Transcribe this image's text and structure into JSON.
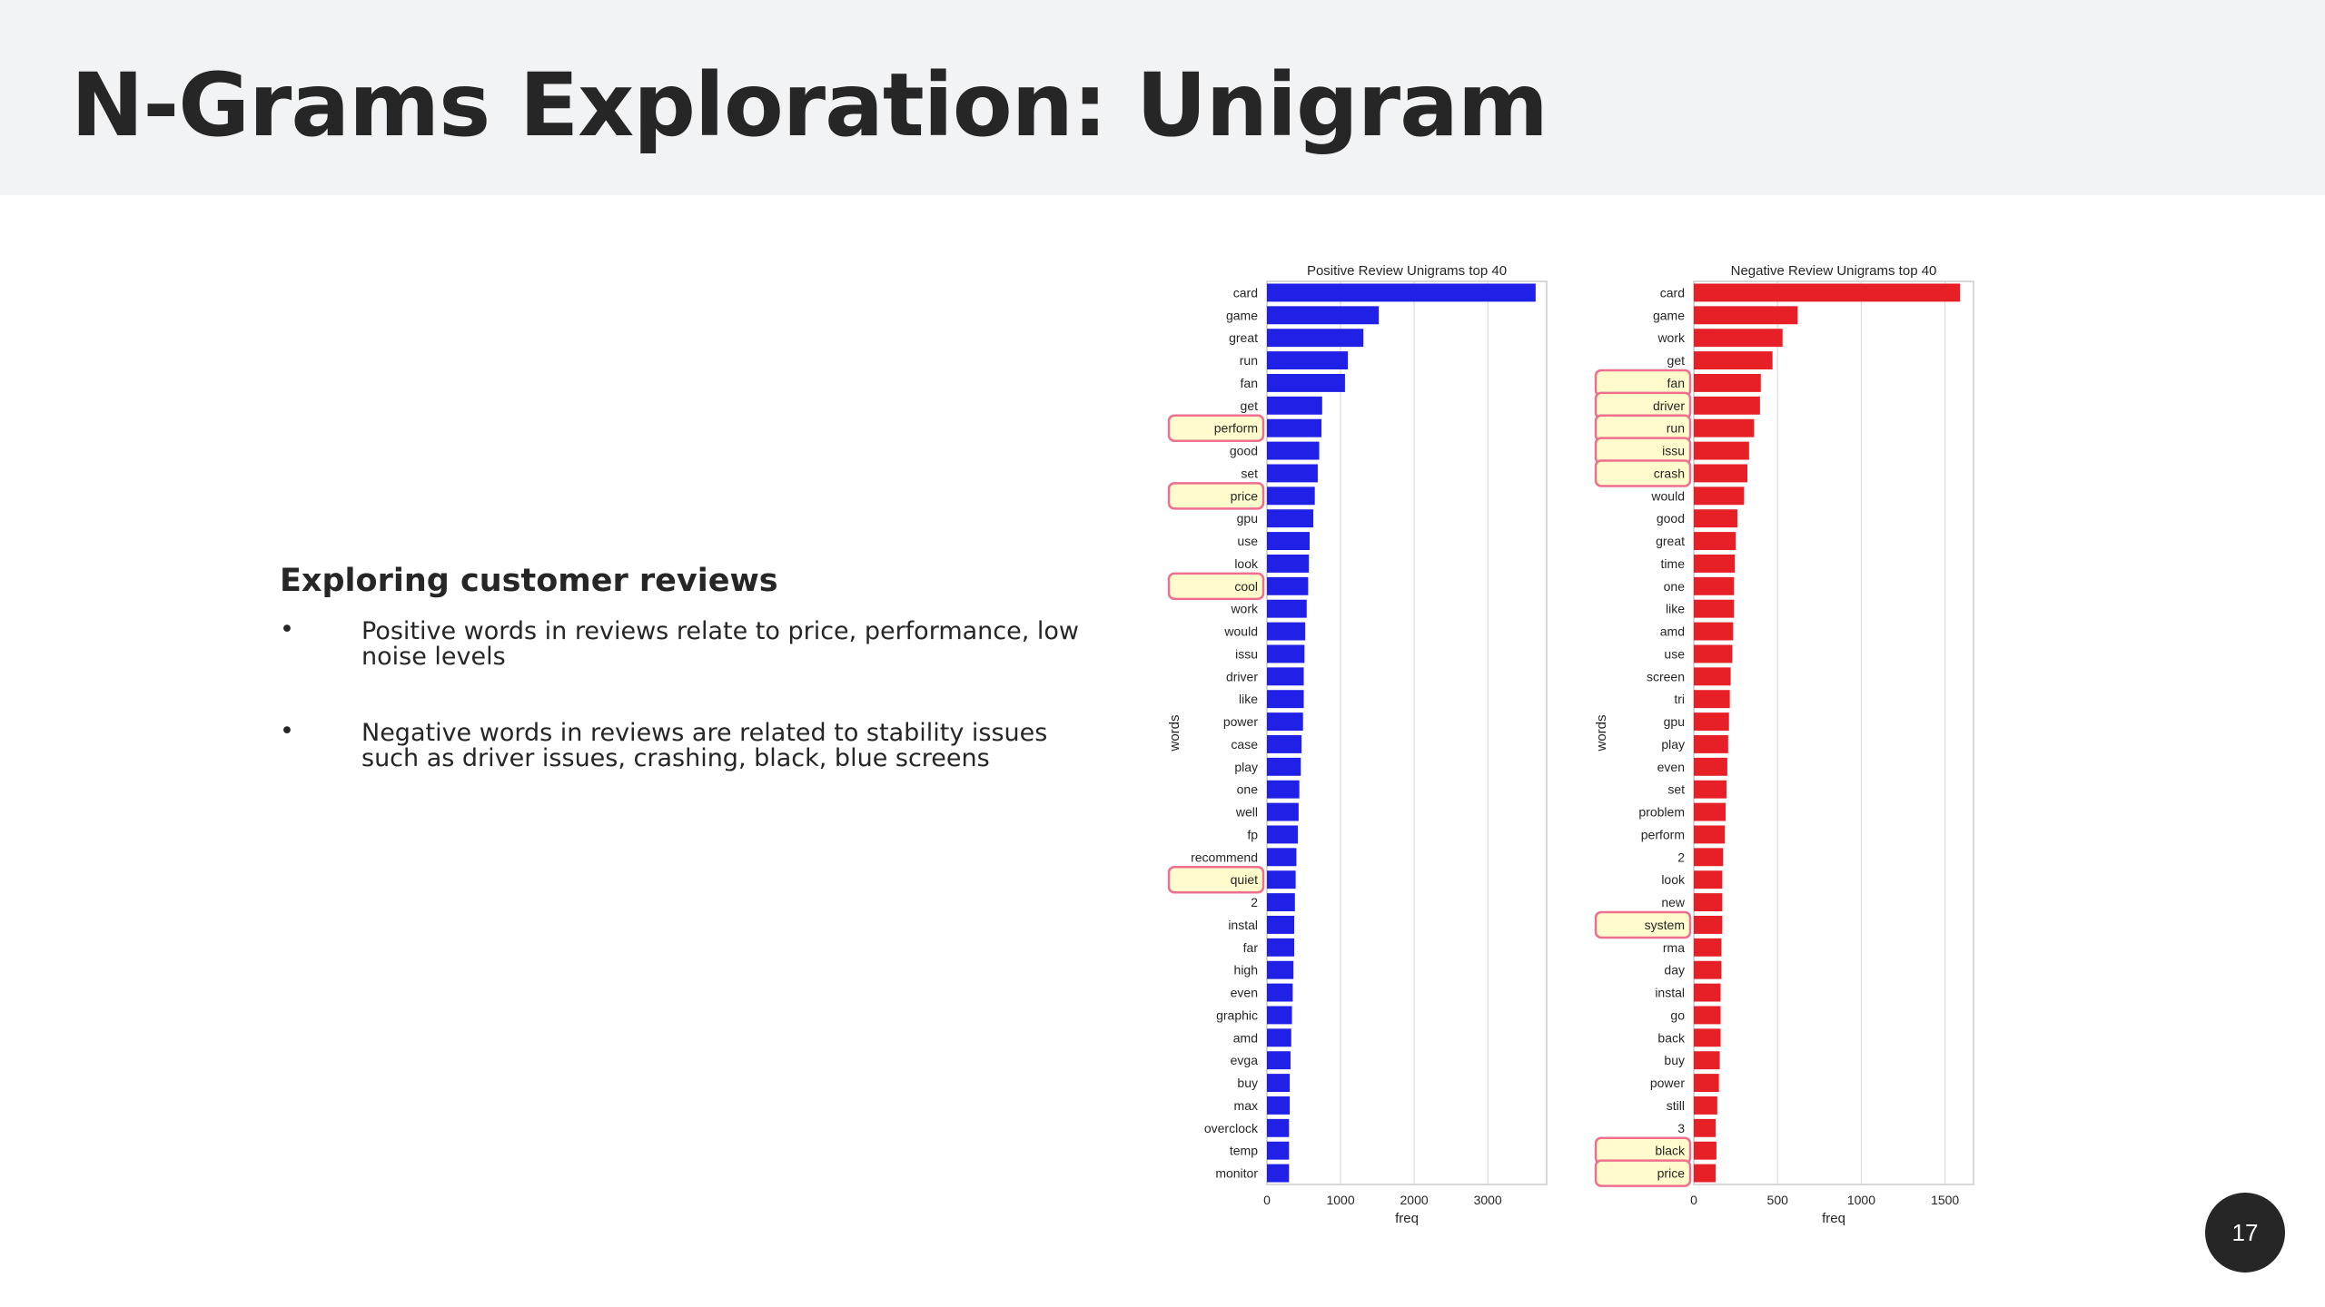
{
  "slide": {
    "title": "N-Grams Exploration: Unigram",
    "page_number": "17"
  },
  "content": {
    "subtitle": "Exploring customer reviews",
    "bullets": [
      "Positive words in reviews relate to price, performance, low noise levels",
      "Negative words in reviews are related to stability issues such as driver issues, crashing, black, blue screens"
    ],
    "bullet_marker": "•"
  },
  "colors": {
    "positive_bar": "#2020e6",
    "negative_bar": "#e62026",
    "highlight_fill": "#fffbcc",
    "highlight_border": "#ee6f8e",
    "title_bar_bg": "#f2f3f5"
  },
  "chart_data": [
    {
      "type": "bar",
      "orientation": "horizontal",
      "title": "Positive Review Unigrams top 40",
      "xlabel": "freq",
      "ylabel": "words",
      "xlim": [
        0,
        3800
      ],
      "xticks": [
        0,
        1000,
        2000,
        3000
      ],
      "grid": true,
      "bar_color": "#2020e6",
      "categories": [
        "card",
        "game",
        "great",
        "run",
        "fan",
        "get",
        "perform",
        "good",
        "set",
        "price",
        "gpu",
        "use",
        "look",
        "cool",
        "work",
        "would",
        "issu",
        "driver",
        "like",
        "power",
        "case",
        "play",
        "one",
        "well",
        "fp",
        "recommend",
        "quiet",
        "2",
        "instal",
        "far",
        "high",
        "even",
        "graphic",
        "amd",
        "evga",
        "buy",
        "max",
        "overclock",
        "temp",
        "monitor"
      ],
      "values": [
        3650,
        1520,
        1310,
        1100,
        1060,
        750,
        740,
        710,
        690,
        650,
        630,
        580,
        570,
        560,
        540,
        520,
        510,
        500,
        500,
        490,
        470,
        460,
        440,
        430,
        420,
        400,
        390,
        380,
        370,
        370,
        360,
        350,
        340,
        330,
        320,
        310,
        310,
        300,
        300,
        300
      ],
      "highlighted": [
        "perform",
        "price",
        "cool",
        "quiet"
      ]
    },
    {
      "type": "bar",
      "orientation": "horizontal",
      "title": "Negative Review Unigrams top 40",
      "xlabel": "freq",
      "ylabel": "words",
      "xlim": [
        0,
        1670
      ],
      "xticks": [
        0,
        500,
        1000,
        1500
      ],
      "grid": true,
      "bar_color": "#e62026",
      "categories": [
        "card",
        "game",
        "work",
        "get",
        "fan",
        "driver",
        "run",
        "issu",
        "crash",
        "would",
        "good",
        "great",
        "time",
        "one",
        "like",
        "amd",
        "use",
        "screen",
        "tri",
        "gpu",
        "play",
        "even",
        "set",
        "problem",
        "perform",
        "2",
        "look",
        "new",
        "system",
        "rma",
        "day",
        "instal",
        "go",
        "back",
        "buy",
        "power",
        "still",
        "3",
        "black",
        "price"
      ],
      "values": [
        1590,
        620,
        530,
        470,
        400,
        395,
        360,
        330,
        320,
        300,
        260,
        250,
        245,
        240,
        240,
        235,
        230,
        220,
        215,
        210,
        205,
        200,
        195,
        190,
        185,
        175,
        170,
        170,
        170,
        165,
        165,
        160,
        160,
        160,
        155,
        150,
        140,
        130,
        135,
        130
      ],
      "highlighted": [
        "fan",
        "driver",
        "run",
        "issu",
        "crash",
        "system",
        "black",
        "price"
      ]
    }
  ]
}
